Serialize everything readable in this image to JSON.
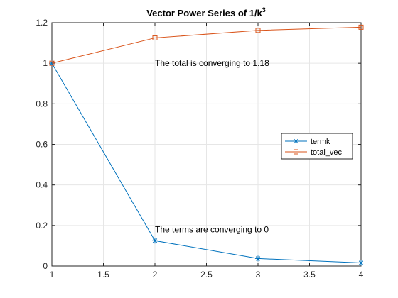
{
  "chart_data": {
    "type": "line",
    "title": "Vector Power Series of 1/k",
    "title_superscript": "3",
    "xlabel": "",
    "ylabel": "",
    "xlim": [
      1,
      4
    ],
    "ylim": [
      0,
      1.2
    ],
    "xticks": [
      1,
      1.5,
      2,
      2.5,
      3,
      3.5,
      4
    ],
    "xtick_labels": [
      "1",
      "1.5",
      "2",
      "2.5",
      "3",
      "3.5",
      "4"
    ],
    "yticks": [
      0,
      0.2,
      0.4,
      0.6,
      0.8,
      1,
      1.2
    ],
    "ytick_labels": [
      "0",
      "0.2",
      "0.4",
      "0.6",
      "0.8",
      "1",
      "1.2"
    ],
    "grid": true,
    "legend_location": "right",
    "x": [
      1,
      2,
      3,
      4
    ],
    "series": [
      {
        "name": "termk",
        "values": [
          1,
          0.125,
          0.037,
          0.0156
        ],
        "color": "#0072BD",
        "marker": "asterisk"
      },
      {
        "name": "total_vec",
        "values": [
          1,
          1.125,
          1.162,
          1.1777
        ],
        "color": "#D95319",
        "marker": "square"
      }
    ],
    "annotations": [
      {
        "text": "The total is converging to 1.18",
        "x": 2,
        "y": 1.0
      },
      {
        "text": "The terms are converging to 0",
        "x": 2,
        "y": 0.18
      }
    ]
  }
}
